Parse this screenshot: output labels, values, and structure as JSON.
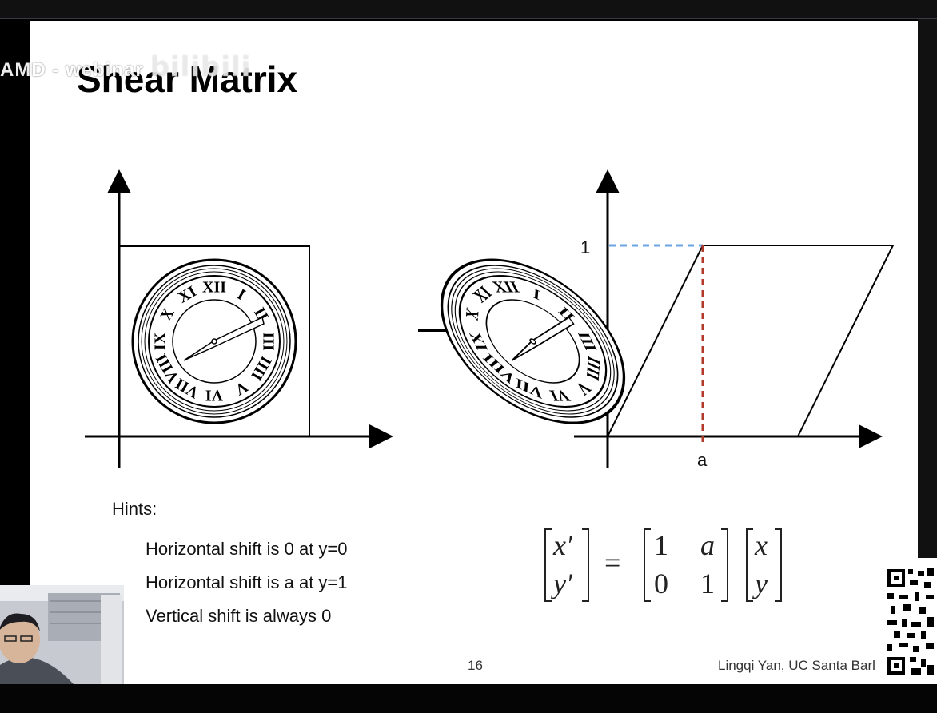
{
  "overlay": {
    "watermark_left": "AMD - webinar",
    "watermark_logo": "bilibili"
  },
  "slide": {
    "title": "Shear Matrix",
    "hints_title": "Hints:",
    "hints": [
      "Horizontal shift is 0 at y=0",
      "Horizontal shift is a at y=1",
      "Vertical shift is always 0"
    ],
    "page_number": "16",
    "author": "Lingqi Yan, UC Santa Barl"
  },
  "figure": {
    "label_one": "1",
    "label_a": "a",
    "roman_numerals": [
      "XII",
      "I",
      "II",
      "III",
      "IIII",
      "V",
      "VI",
      "VII",
      "VIII",
      "IX",
      "X",
      "XI"
    ]
  },
  "equation": {
    "lhs": [
      "x′",
      "y′"
    ],
    "equals": "=",
    "matrix": [
      [
        "1",
        "a"
      ],
      [
        "0",
        "1"
      ]
    ],
    "rhs": [
      "x",
      "y"
    ]
  },
  "colors": {
    "blue_dash": "#6aa6e4",
    "red_dash": "#b33a2a"
  }
}
